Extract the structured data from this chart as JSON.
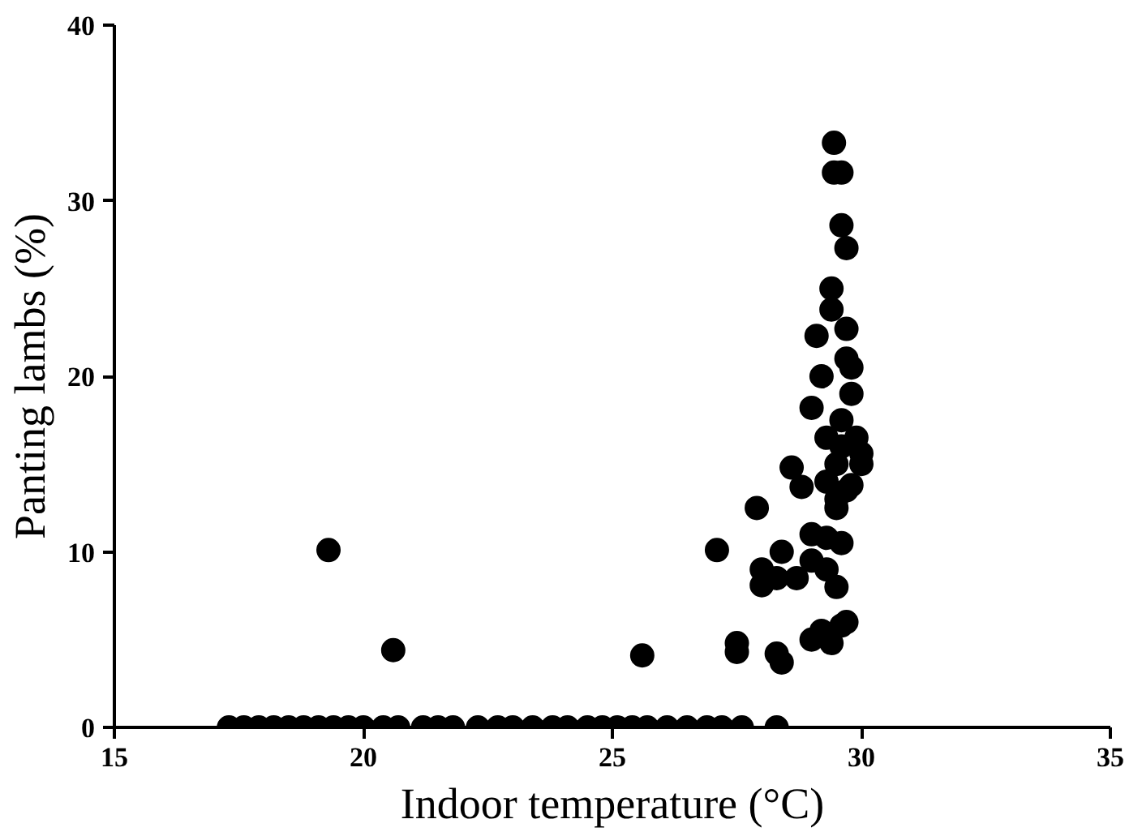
{
  "chart_data": {
    "type": "scatter",
    "xlabel": "Indoor temperature (°C)",
    "ylabel": "Panting lambs (%)",
    "marker": "circle",
    "grid": false,
    "xlim": [
      15,
      35
    ],
    "xticks": [
      15,
      20,
      25,
      30,
      35
    ],
    "ylim": [
      0,
      40
    ],
    "yticks": [
      0,
      10,
      20,
      30,
      40
    ],
    "series": [
      {
        "color": "#000000",
        "x": [
          17.3,
          17.6,
          17.9,
          18.2,
          18.5,
          18.8,
          19.1,
          19.4,
          19.7,
          20.0,
          20.4,
          20.7,
          21.2,
          21.5,
          21.8,
          22.3,
          22.7,
          23.0,
          23.4,
          23.8,
          24.1,
          24.5,
          24.8,
          25.1,
          25.4,
          25.7,
          26.1,
          26.5,
          26.9,
          27.2,
          27.6,
          28.3,
          19.3,
          20.6,
          25.6,
          27.1,
          27.5,
          27.5,
          27.9,
          28.0,
          28.0,
          28.3,
          28.3,
          28.4,
          28.4,
          28.6,
          28.8,
          28.7,
          29.0,
          29.0,
          29.0,
          29.0,
          29.2,
          29.1,
          29.2,
          29.3,
          29.3,
          29.3,
          29.4,
          29.4,
          29.45,
          29.45,
          29.6,
          29.6,
          29.7,
          29.6,
          29.6,
          29.5,
          29.5,
          29.5,
          29.6,
          29.7,
          29.7,
          29.7,
          29.8,
          29.8,
          29.9,
          30.0,
          29.7,
          29.6,
          29.3,
          29.5,
          29.4,
          29.8,
          30.0
        ],
        "values": [
          0,
          0,
          0,
          0,
          0,
          0,
          0,
          0,
          0,
          0,
          0,
          0,
          0,
          0,
          0,
          0,
          0,
          0,
          0,
          0,
          0,
          0,
          0,
          0,
          0,
          0,
          0,
          0,
          0,
          0,
          0,
          0,
          10.1,
          4.4,
          4.1,
          10.1,
          4.8,
          4.3,
          12.5,
          9.0,
          8.1,
          8.5,
          4.2,
          3.7,
          10.0,
          14.8,
          13.7,
          8.5,
          18.2,
          11.0,
          9.5,
          5.0,
          5.5,
          22.3,
          20.0,
          16.5,
          14.0,
          10.8,
          25.0,
          23.8,
          33.3,
          31.6,
          31.6,
          28.6,
          27.3,
          17.5,
          16.0,
          15.0,
          13.0,
          12.5,
          5.8,
          6.0,
          22.7,
          21.0,
          19.0,
          20.5,
          16.5,
          15.0,
          13.5,
          10.5,
          9.0,
          8.0,
          4.8,
          13.8,
          15.6
        ]
      }
    ]
  }
}
